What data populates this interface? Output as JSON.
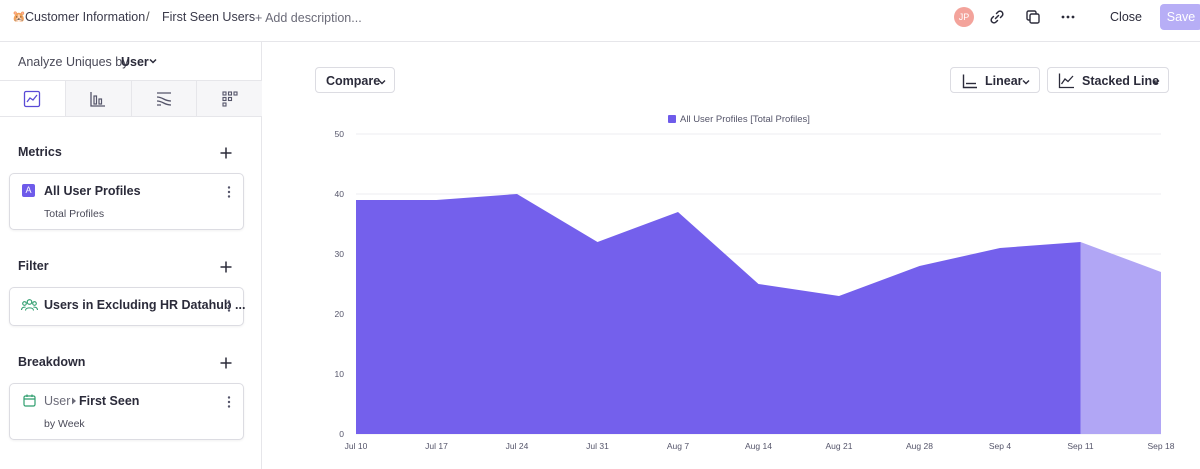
{
  "topbar": {
    "breadcrumb_emoji": "🐹",
    "breadcrumb_1": "Customer Information",
    "separator": "/",
    "breadcrumb_2": "First Seen Users",
    "add_description": "+ Add description...",
    "avatar_initials": "JP",
    "close_label": "Close",
    "save_label": "Save"
  },
  "sidebar": {
    "analyze_label": "Analyze Uniques by",
    "analyze_value": "User",
    "metrics": {
      "title": "Metrics",
      "badge": "A",
      "item_title": "All User Profiles",
      "item_sub": "Total Profiles"
    },
    "filter": {
      "title": "Filter",
      "item_title": "Users in Excluding HR Datahub ..."
    },
    "breakdown": {
      "title": "Breakdown",
      "item_prefix": "User",
      "item_title": "First Seen",
      "item_sub": "by Week"
    }
  },
  "main": {
    "compare_label": "Compare",
    "scale_label": "Linear",
    "chart_type_label": "Stacked Line"
  },
  "colors": {
    "accent": "#6e5bea",
    "area_fill": "#7460ec",
    "area_fill_partial": "#b1a6f5",
    "save_bg": "#b7aef6"
  },
  "chart_data": {
    "type": "area",
    "legend": "All User Profiles [Total Profiles]",
    "legend_position": "top-center",
    "x": [
      "Jul 10",
      "Jul 17",
      "Jul 24",
      "Jul 31",
      "Aug 7",
      "Aug 14",
      "Aug 21",
      "Aug 28",
      "Sep 4",
      "Sep 11",
      "Sep 18"
    ],
    "series": [
      {
        "name": "All User Profiles [Total Profiles]",
        "values": [
          39,
          39,
          40,
          32,
          37,
          25,
          23,
          28,
          31,
          32,
          27
        ]
      }
    ],
    "partial_from_index": 9,
    "ylim": [
      0,
      50
    ],
    "yticks": [
      0,
      10,
      20,
      30,
      40,
      50
    ],
    "grid": true
  }
}
